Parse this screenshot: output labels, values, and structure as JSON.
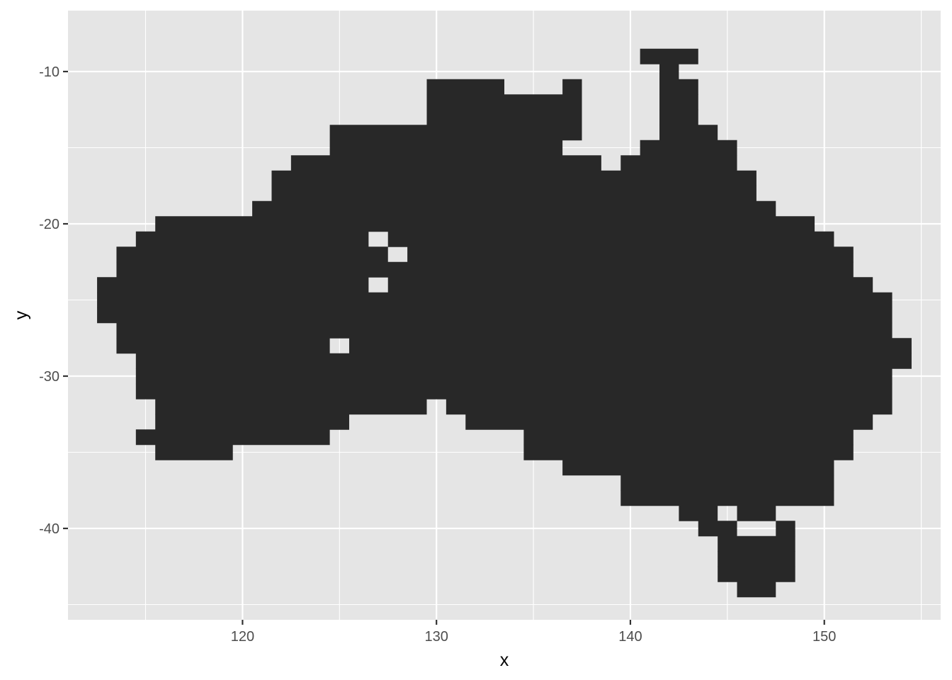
{
  "chart_data": {
    "type": "heatmap",
    "title": "",
    "xlabel": "x",
    "ylabel": "y",
    "xlim": [
      111.0,
      156.0
    ],
    "ylim": [
      -46.0,
      -6.0
    ],
    "x_ticks": [
      120,
      130,
      140,
      150
    ],
    "y_ticks": [
      -10,
      -20,
      -30,
      -40
    ],
    "grid": true,
    "colors": {
      "panel_background": "#e5e5e5",
      "grid_line": "#ffffff",
      "tile_fill": "#282828",
      "tick_label": "#4d4d4d"
    },
    "tile_size": 1,
    "tile_rows": [
      {
        "y": -9,
        "runs": [
          [
            141,
            143
          ]
        ]
      },
      {
        "y": -10,
        "runs": [
          [
            142,
            142
          ]
        ]
      },
      {
        "y": -11,
        "runs": [
          [
            130,
            133
          ],
          [
            137,
            137
          ],
          [
            142,
            143
          ]
        ]
      },
      {
        "y": -12,
        "runs": [
          [
            130,
            137
          ],
          [
            142,
            143
          ]
        ]
      },
      {
        "y": -13,
        "runs": [
          [
            130,
            137
          ],
          [
            142,
            143
          ]
        ]
      },
      {
        "y": -14,
        "runs": [
          [
            125,
            137
          ],
          [
            142,
            144
          ]
        ]
      },
      {
        "y": -15,
        "runs": [
          [
            125,
            136
          ],
          [
            141,
            145
          ]
        ]
      },
      {
        "y": -16,
        "runs": [
          [
            123,
            138
          ],
          [
            140,
            145
          ]
        ]
      },
      {
        "y": -17,
        "runs": [
          [
            122,
            146
          ]
        ]
      },
      {
        "y": -18,
        "runs": [
          [
            122,
            146
          ]
        ]
      },
      {
        "y": -19,
        "runs": [
          [
            121,
            147
          ]
        ]
      },
      {
        "y": -20,
        "runs": [
          [
            116,
            149
          ]
        ]
      },
      {
        "y": -21,
        "runs": [
          [
            115,
            126
          ],
          [
            128,
            150
          ]
        ]
      },
      {
        "y": -22,
        "runs": [
          [
            114,
            127
          ],
          [
            129,
            151
          ]
        ]
      },
      {
        "y": -23,
        "runs": [
          [
            114,
            151
          ]
        ]
      },
      {
        "y": -24,
        "runs": [
          [
            113,
            126
          ],
          [
            128,
            152
          ]
        ]
      },
      {
        "y": -25,
        "runs": [
          [
            113,
            153
          ]
        ]
      },
      {
        "y": -26,
        "runs": [
          [
            113,
            153
          ]
        ]
      },
      {
        "y": -27,
        "runs": [
          [
            114,
            153
          ]
        ]
      },
      {
        "y": -28,
        "runs": [
          [
            114,
            124
          ],
          [
            126,
            154
          ]
        ]
      },
      {
        "y": -29,
        "runs": [
          [
            115,
            154
          ]
        ]
      },
      {
        "y": -30,
        "runs": [
          [
            115,
            153
          ]
        ]
      },
      {
        "y": -31,
        "runs": [
          [
            115,
            153
          ]
        ]
      },
      {
        "y": -32,
        "runs": [
          [
            116,
            129
          ],
          [
            131,
            153
          ]
        ]
      },
      {
        "y": -33,
        "runs": [
          [
            116,
            125
          ],
          [
            132,
            152
          ]
        ]
      },
      {
        "y": -34,
        "runs": [
          [
            115,
            124
          ],
          [
            135,
            151
          ]
        ]
      },
      {
        "y": -35,
        "runs": [
          [
            116,
            119
          ],
          [
            135,
            151
          ]
        ]
      },
      {
        "y": -36,
        "runs": [
          [
            137,
            150
          ]
        ]
      },
      {
        "y": -37,
        "runs": [
          [
            140,
            150
          ]
        ]
      },
      {
        "y": -38,
        "runs": [
          [
            140,
            150
          ]
        ]
      },
      {
        "y": -39,
        "runs": [
          [
            143,
            144
          ],
          [
            146,
            147
          ]
        ]
      },
      {
        "y": -40,
        "runs": [
          [
            144,
            145
          ],
          [
            148,
            148
          ]
        ]
      },
      {
        "y": -41,
        "runs": [
          [
            145,
            148
          ]
        ]
      },
      {
        "y": -42,
        "runs": [
          [
            145,
            148
          ]
        ]
      },
      {
        "y": -43,
        "runs": [
          [
            145,
            148
          ]
        ]
      },
      {
        "y": -44,
        "runs": [
          [
            146,
            147
          ]
        ]
      }
    ]
  }
}
